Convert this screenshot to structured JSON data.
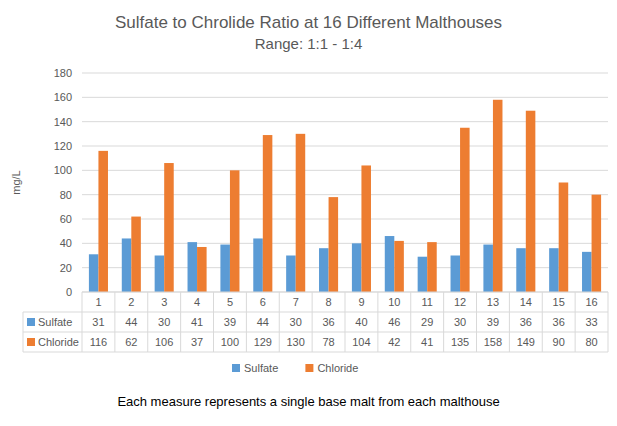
{
  "chart_data": {
    "type": "bar",
    "title": "Sulfate to Chrolide Ratio at 16 Different Malthouses",
    "subtitle": "Range: 1:1 - 1:4",
    "y_label": "mg/L",
    "footnote": "Each measure represents a single base malt from each malthouse",
    "categories": [
      "1",
      "2",
      "3",
      "4",
      "5",
      "6",
      "7",
      "8",
      "9",
      "10",
      "11",
      "12",
      "13",
      "14",
      "15",
      "16"
    ],
    "series": [
      {
        "name": "Sulfate",
        "color": "#5b9bd5",
        "values": [
          31,
          44,
          30,
          41,
          39,
          44,
          30,
          36,
          40,
          46,
          29,
          30,
          39,
          36,
          36,
          33
        ]
      },
      {
        "name": "Chloride",
        "color": "#ed7d31",
        "values": [
          116,
          62,
          106,
          37,
          100,
          129,
          130,
          78,
          104,
          42,
          41,
          135,
          158,
          149,
          90,
          80
        ]
      }
    ],
    "ylim": [
      0,
      180
    ],
    "yticks": [
      0,
      20,
      40,
      60,
      80,
      100,
      120,
      140,
      160,
      180
    ],
    "grid": true,
    "legend": "bottom"
  }
}
